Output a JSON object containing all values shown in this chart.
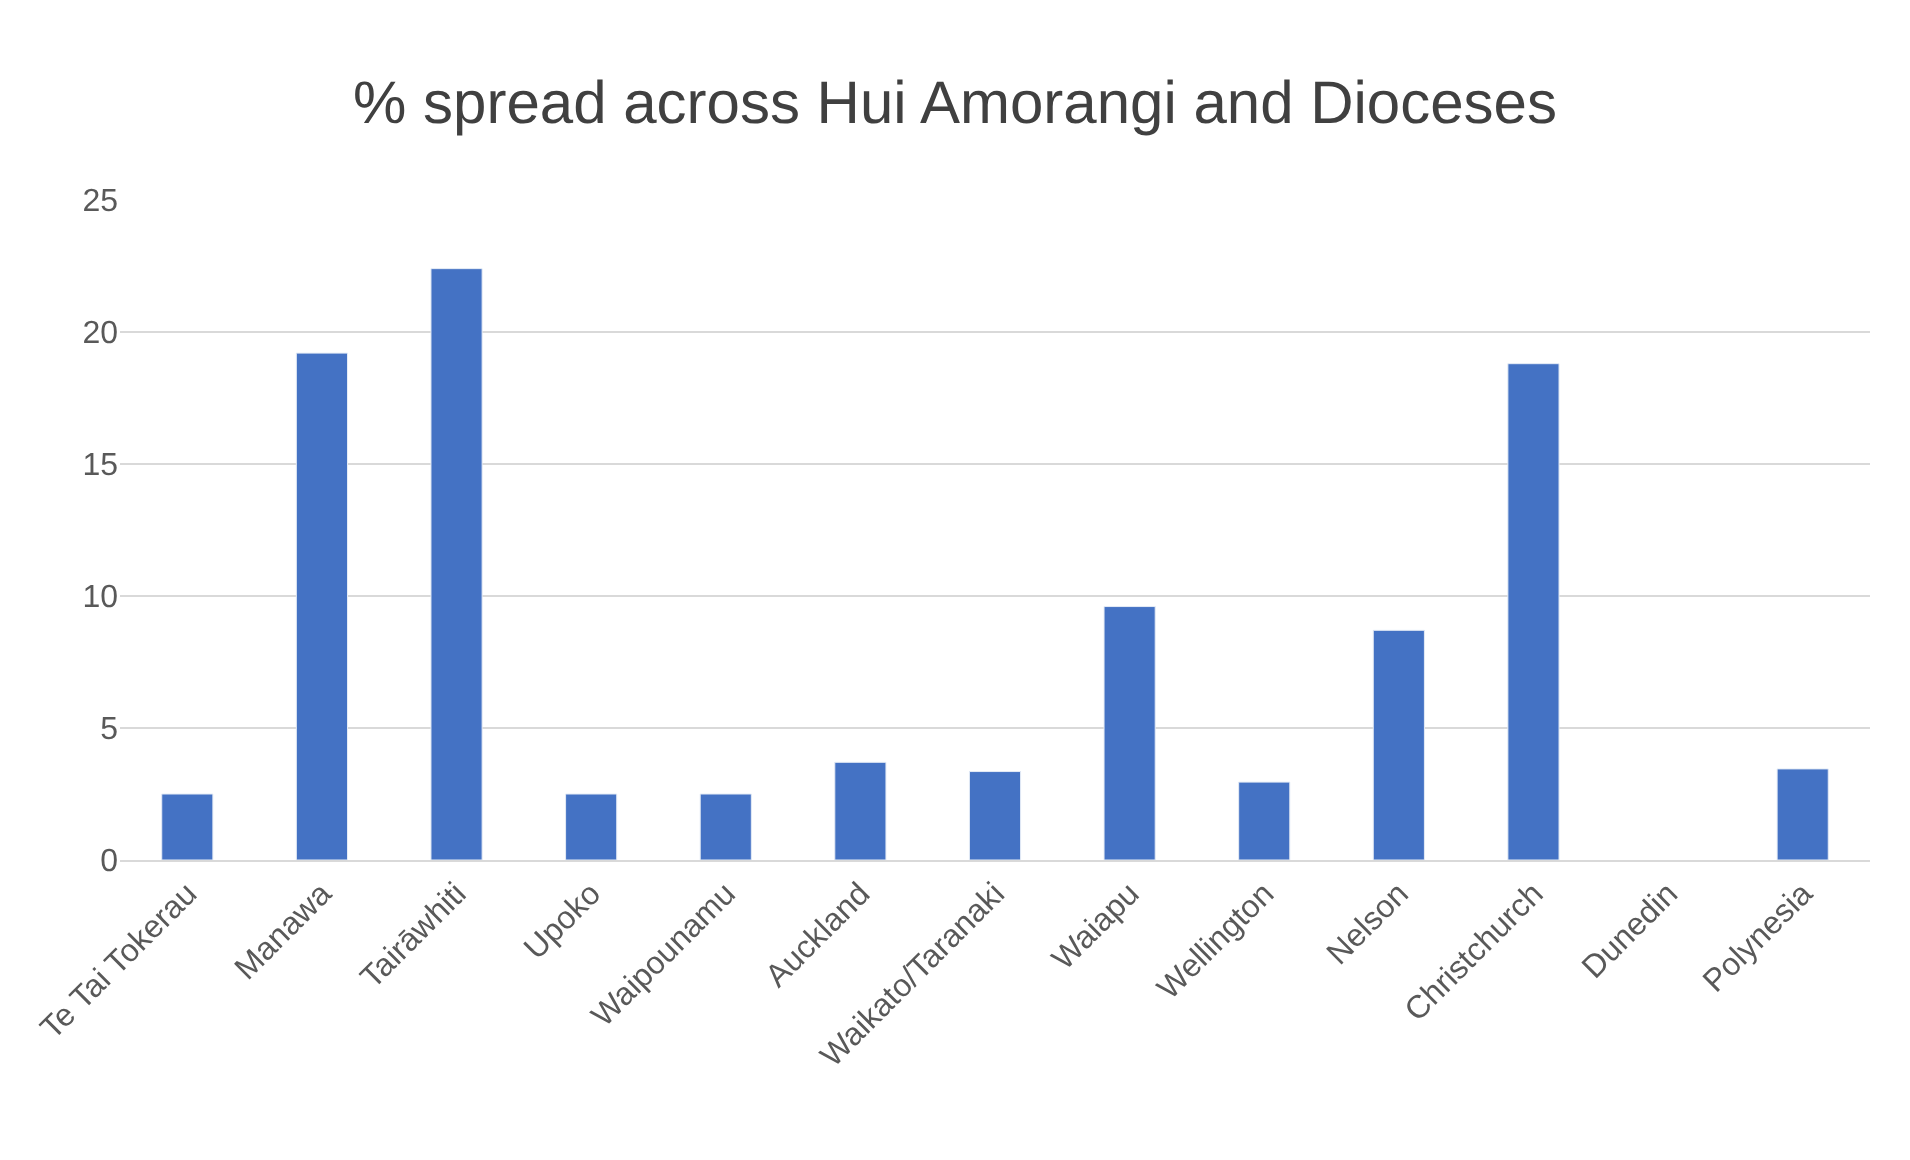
{
  "chart_data": {
    "type": "bar",
    "title": "% spread across Hui Amorangi and Dioceses",
    "categories": [
      "Te Tai Tokerau",
      "Manawa",
      "Tairāwhiti",
      "Upoko",
      "Waipounamu",
      "Auckland",
      "Waikato/Taranaki",
      "Waiapu",
      "Wellington",
      "Nelson",
      "Christchurch",
      "Dunedin",
      "Polynesia"
    ],
    "values": [
      2.5,
      19.2,
      22.4,
      2.5,
      2.5,
      3.7,
      3.35,
      9.6,
      2.95,
      8.7,
      18.8,
      null,
      3.45
    ],
    "color": "#4472c4",
    "ylim": [
      0,
      25
    ],
    "yticks": [
      0,
      5,
      10,
      15,
      20,
      25
    ],
    "grid": "y"
  }
}
